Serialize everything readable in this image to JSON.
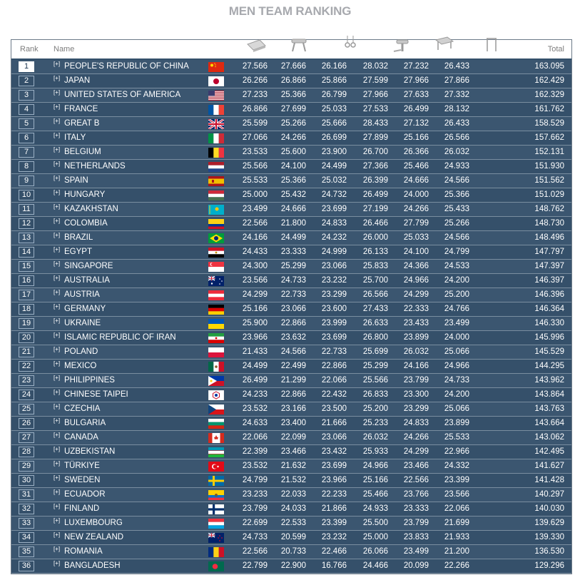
{
  "title": "MEN TEAM RANKING",
  "headers": {
    "rank": "Rank",
    "name": "Name",
    "total": "Total"
  },
  "apparatus_icons": [
    "floor-exercise-icon",
    "pommel-horse-icon",
    "rings-icon",
    "vault-icon",
    "parallel-bars-icon",
    "horizontal-bar-icon"
  ],
  "expand_label": "[+]",
  "rows": [
    {
      "rank": "1",
      "name": "PEOPLE'S REPUBLIC OF CHINA",
      "flag": "china",
      "scores": [
        "27.566",
        "27.666",
        "26.166",
        "28.032",
        "27.232",
        "26.433"
      ],
      "total": "163.095"
    },
    {
      "rank": "2",
      "name": "JAPAN",
      "flag": "japan",
      "scores": [
        "26.266",
        "26.866",
        "25.866",
        "27.599",
        "27.966",
        "27.866"
      ],
      "total": "162.429"
    },
    {
      "rank": "3",
      "name": "UNITED STATES OF AMERICA",
      "flag": "usa",
      "scores": [
        "27.233",
        "25.366",
        "26.799",
        "27.966",
        "27.633",
        "27.332"
      ],
      "total": "162.329"
    },
    {
      "rank": "4",
      "name": "FRANCE",
      "flag": "france",
      "scores": [
        "26.866",
        "27.699",
        "25.033",
        "27.533",
        "26.499",
        "28.132"
      ],
      "total": "161.762"
    },
    {
      "rank": "5",
      "name": "GREAT B",
      "flag": "uk",
      "scores": [
        "25.599",
        "25.266",
        "25.666",
        "28.433",
        "27.132",
        "26.433"
      ],
      "total": "158.529"
    },
    {
      "rank": "6",
      "name": "ITALY",
      "flag": "italy",
      "scores": [
        "27.066",
        "24.266",
        "26.699",
        "27.899",
        "25.166",
        "26.566"
      ],
      "total": "157.662"
    },
    {
      "rank": "7",
      "name": "BELGIUM",
      "flag": "belgium",
      "scores": [
        "23.533",
        "25.600",
        "23.900",
        "26.700",
        "26.366",
        "26.032"
      ],
      "total": "152.131"
    },
    {
      "rank": "8",
      "name": "NETHERLANDS",
      "flag": "netherlands",
      "scores": [
        "25.566",
        "24.100",
        "24.499",
        "27.366",
        "25.466",
        "24.933"
      ],
      "total": "151.930"
    },
    {
      "rank": "9",
      "name": "SPAIN",
      "flag": "spain",
      "scores": [
        "25.533",
        "25.366",
        "25.032",
        "26.399",
        "24.666",
        "24.566"
      ],
      "total": "151.562"
    },
    {
      "rank": "10",
      "name": "HUNGARY",
      "flag": "hungary",
      "scores": [
        "25.000",
        "25.432",
        "24.732",
        "26.499",
        "24.000",
        "25.366"
      ],
      "total": "151.029"
    },
    {
      "rank": "11",
      "name": "KAZAKHSTAN",
      "flag": "kazakhstan",
      "scores": [
        "23.499",
        "24.666",
        "23.699",
        "27.199",
        "24.266",
        "25.433"
      ],
      "total": "148.762"
    },
    {
      "rank": "12",
      "name": "COLOMBIA",
      "flag": "colombia",
      "scores": [
        "22.566",
        "21.800",
        "24.833",
        "26.466",
        "27.799",
        "25.266"
      ],
      "total": "148.730"
    },
    {
      "rank": "13",
      "name": "BRAZIL",
      "flag": "brazil",
      "scores": [
        "24.166",
        "24.499",
        "24.232",
        "26.000",
        "25.033",
        "24.566"
      ],
      "total": "148.496"
    },
    {
      "rank": "14",
      "name": "EGYPT",
      "flag": "egypt",
      "scores": [
        "24.433",
        "23.333",
        "24.999",
        "26.133",
        "24.100",
        "24.799"
      ],
      "total": "147.797"
    },
    {
      "rank": "15",
      "name": "SINGAPORE",
      "flag": "singapore",
      "scores": [
        "24.300",
        "25.299",
        "23.066",
        "25.833",
        "24.366",
        "24.533"
      ],
      "total": "147.397"
    },
    {
      "rank": "16",
      "name": "AUSTRALIA",
      "flag": "australia",
      "scores": [
        "23.566",
        "24.733",
        "23.232",
        "25.700",
        "24.966",
        "24.200"
      ],
      "total": "146.397"
    },
    {
      "rank": "17",
      "name": "AUSTRIA",
      "flag": "austria",
      "scores": [
        "24.299",
        "22.733",
        "23.299",
        "26.566",
        "24.299",
        "25.200"
      ],
      "total": "146.396"
    },
    {
      "rank": "18",
      "name": "GERMANY",
      "flag": "germany",
      "scores": [
        "25.166",
        "23.066",
        "23.600",
        "27.433",
        "22.333",
        "24.766"
      ],
      "total": "146.364"
    },
    {
      "rank": "19",
      "name": "UKRAINE",
      "flag": "ukraine",
      "scores": [
        "25.900",
        "22.866",
        "23.999",
        "26.633",
        "23.433",
        "23.499"
      ],
      "total": "146.330"
    },
    {
      "rank": "20",
      "name": "ISLAMIC REPUBLIC OF IRAN",
      "flag": "iran",
      "scores": [
        "23.966",
        "23.632",
        "23.699",
        "26.800",
        "23.899",
        "24.000"
      ],
      "total": "145.996"
    },
    {
      "rank": "21",
      "name": "POLAND",
      "flag": "poland",
      "scores": [
        "21.433",
        "24.566",
        "22.733",
        "25.699",
        "26.032",
        "25.066"
      ],
      "total": "145.529"
    },
    {
      "rank": "22",
      "name": "MEXICO",
      "flag": "mexico",
      "scores": [
        "24.499",
        "22.499",
        "22.866",
        "25.299",
        "24.166",
        "24.966"
      ],
      "total": "144.295"
    },
    {
      "rank": "23",
      "name": "PHILIPPINES",
      "flag": "philippines",
      "scores": [
        "26.499",
        "21.299",
        "22.066",
        "25.566",
        "23.799",
        "24.733"
      ],
      "total": "143.962"
    },
    {
      "rank": "24",
      "name": "CHINESE TAIPEI",
      "flag": "taipei",
      "scores": [
        "24.233",
        "22.866",
        "22.432",
        "26.833",
        "23.300",
        "24.200"
      ],
      "total": "143.864"
    },
    {
      "rank": "25",
      "name": "CZECHIA",
      "flag": "czechia",
      "scores": [
        "23.532",
        "23.166",
        "23.500",
        "25.200",
        "23.299",
        "25.066"
      ],
      "total": "143.763"
    },
    {
      "rank": "26",
      "name": "BULGARIA",
      "flag": "bulgaria",
      "scores": [
        "24.633",
        "23.400",
        "21.666",
        "25.233",
        "24.833",
        "23.899"
      ],
      "total": "143.664"
    },
    {
      "rank": "27",
      "name": "CANADA",
      "flag": "canada",
      "scores": [
        "22.066",
        "22.099",
        "23.066",
        "26.032",
        "24.266",
        "25.533"
      ],
      "total": "143.062"
    },
    {
      "rank": "28",
      "name": "UZBEKISTAN",
      "flag": "uzbekistan",
      "scores": [
        "22.399",
        "23.466",
        "23.432",
        "25.933",
        "24.299",
        "22.966"
      ],
      "total": "142.495"
    },
    {
      "rank": "29",
      "name": "TÜRKIYE",
      "flag": "turkiye",
      "scores": [
        "23.532",
        "21.632",
        "23.699",
        "24.966",
        "23.466",
        "24.332"
      ],
      "total": "141.627"
    },
    {
      "rank": "30",
      "name": "SWEDEN",
      "flag": "sweden",
      "scores": [
        "24.799",
        "21.532",
        "23.966",
        "25.166",
        "22.566",
        "23.399"
      ],
      "total": "141.428"
    },
    {
      "rank": "31",
      "name": "ECUADOR",
      "flag": "ecuador",
      "scores": [
        "23.233",
        "22.033",
        "22.233",
        "25.466",
        "23.766",
        "23.566"
      ],
      "total": "140.297"
    },
    {
      "rank": "32",
      "name": "FINLAND",
      "flag": "finland",
      "scores": [
        "23.799",
        "24.033",
        "21.866",
        "24.933",
        "23.333",
        "22.066"
      ],
      "total": "140.030"
    },
    {
      "rank": "33",
      "name": "LUXEMBOURG",
      "flag": "luxembourg",
      "scores": [
        "22.699",
        "22.533",
        "23.399",
        "25.500",
        "23.799",
        "21.699"
      ],
      "total": "139.629"
    },
    {
      "rank": "34",
      "name": "NEW ZEALAND",
      "flag": "newzealand",
      "scores": [
        "24.733",
        "20.599",
        "23.232",
        "25.000",
        "23.833",
        "21.933"
      ],
      "total": "139.330"
    },
    {
      "rank": "35",
      "name": "ROMANIA",
      "flag": "romania",
      "scores": [
        "22.566",
        "20.733",
        "22.466",
        "26.066",
        "23.499",
        "21.200"
      ],
      "total": "136.530"
    },
    {
      "rank": "36",
      "name": "BANGLADESH",
      "flag": "bangladesh",
      "scores": [
        "22.799",
        "22.900",
        "16.766",
        "24.466",
        "20.099",
        "22.266"
      ],
      "total": "129.296"
    }
  ]
}
